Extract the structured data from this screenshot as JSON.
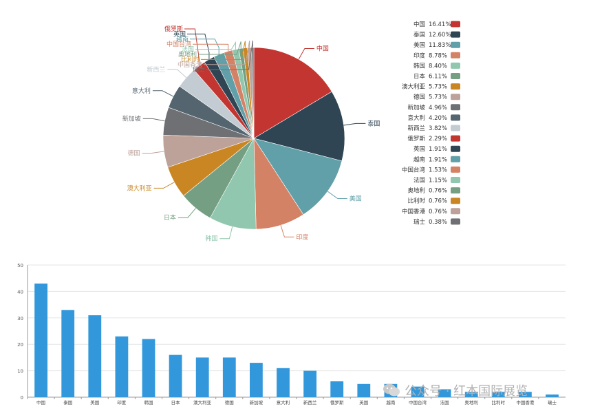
{
  "chart_data": [
    {
      "type": "pie",
      "slices": [
        {
          "label": "中国",
          "pct": "16.41%",
          "value": 16.41,
          "color": "#c23531"
        },
        {
          "label": "泰国",
          "pct": "12.60%",
          "value": 12.6,
          "color": "#2f4554"
        },
        {
          "label": "美国",
          "pct": "11.83%",
          "value": 11.83,
          "color": "#61a0a8"
        },
        {
          "label": "印度",
          "pct": "8.78%",
          "value": 8.78,
          "color": "#d48265"
        },
        {
          "label": "韩国",
          "pct": "8.40%",
          "value": 8.4,
          "color": "#91c7ae"
        },
        {
          "label": "日本",
          "pct": "6.11%",
          "value": 6.11,
          "color": "#749f83"
        },
        {
          "label": "澳大利亚",
          "pct": "5.73%",
          "value": 5.73,
          "color": "#ca8622"
        },
        {
          "label": "德国",
          "pct": "5.73%",
          "value": 5.73,
          "color": "#bda29a"
        },
        {
          "label": "新加坡",
          "pct": "4.96%",
          "value": 4.96,
          "color": "#6e7074"
        },
        {
          "label": "意大利",
          "pct": "4.20%",
          "value": 4.2,
          "color": "#546570"
        },
        {
          "label": "新西兰",
          "pct": "3.82%",
          "value": 3.82,
          "color": "#c4ccd3"
        },
        {
          "label": "俄罗斯",
          "pct": "2.29%",
          "value": 2.29,
          "color": "#c23531"
        },
        {
          "label": "英国",
          "pct": "1.91%",
          "value": 1.91,
          "color": "#2f4554"
        },
        {
          "label": "越南",
          "pct": "1.91%",
          "value": 1.91,
          "color": "#61a0a8"
        },
        {
          "label": "中国台湾",
          "pct": "1.53%",
          "value": 1.53,
          "color": "#d48265"
        },
        {
          "label": "法国",
          "pct": "1.15%",
          "value": 1.15,
          "color": "#91c7ae"
        },
        {
          "label": "奥地利",
          "pct": "0.76%",
          "value": 0.76,
          "color": "#749f83"
        },
        {
          "label": "比利时",
          "pct": "0.76%",
          "value": 0.76,
          "color": "#ca8622"
        },
        {
          "label": "中国香港",
          "pct": "0.76%",
          "value": 0.76,
          "color": "#bda29a"
        },
        {
          "label": "瑞士",
          "pct": "0.38%",
          "value": 0.38,
          "color": "#6e7074"
        }
      ],
      "legend_position": "right"
    },
    {
      "type": "bar",
      "categories": [
        "中国",
        "泰国",
        "美国",
        "印度",
        "韩国",
        "日本",
        "澳大利亚",
        "德国",
        "新加坡",
        "意大利",
        "新西兰",
        "俄罗斯",
        "英国",
        "越南",
        "中国台湾",
        "法国",
        "奥地利",
        "比利时",
        "中国香港",
        "瑞士"
      ],
      "values": [
        43,
        33,
        31,
        23,
        22,
        16,
        15,
        15,
        13,
        11,
        10,
        6,
        5,
        5,
        4,
        3,
        2,
        2,
        2,
        1
      ],
      "ylim": [
        0,
        50
      ],
      "yticks": [
        "0",
        "10",
        "20",
        "30",
        "40",
        "50"
      ],
      "grid": true,
      "bar_color": "#3398db"
    }
  ],
  "watermark": "公众号 · 红本国际展览"
}
